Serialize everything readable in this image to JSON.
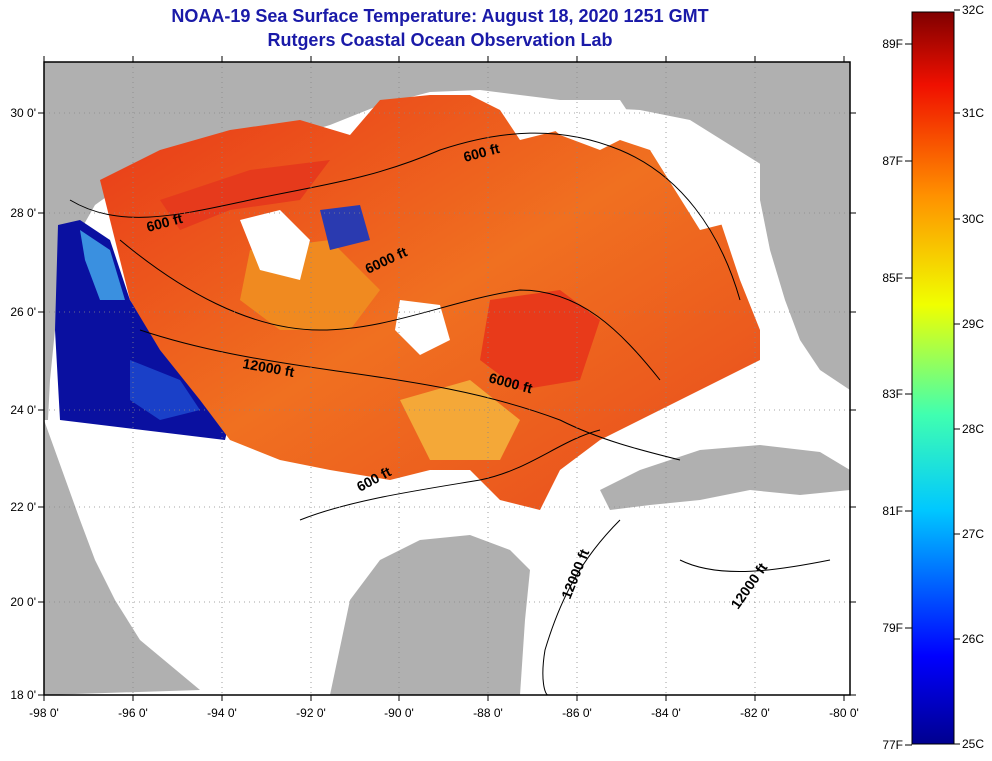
{
  "title": {
    "line1": "NOAA-19 Sea Surface Temperature:  August 18, 2020 1251 GMT",
    "line2": "Rutgers Coastal Ocean Observation Lab"
  },
  "map": {
    "lat_labels": [
      "30 0'",
      "28 0'",
      "26 0'",
      "24 0'",
      "22 0'",
      "20 0'",
      "18 0'"
    ],
    "lon_labels": [
      "-98 0'",
      "-96 0'",
      "-94 0'",
      "-92 0'",
      "-90 0'",
      "-88 0'",
      "-86 0'",
      "-84 0'",
      "-82 0'",
      "-80 0'"
    ],
    "contour_labels": [
      "600 ft",
      "600 ft",
      "600 ft",
      "6000 ft",
      "6000 ft",
      "12000 ft",
      "12000 ft",
      "12000 ft"
    ]
  },
  "colorbar": {
    "fahrenheit": [
      "89F",
      "87F",
      "85F",
      "83F",
      "81F",
      "79F",
      "77F"
    ],
    "celsius": [
      "32C",
      "31C",
      "30C",
      "29C",
      "28C",
      "27C",
      "26C",
      "25C"
    ]
  },
  "colors": {
    "title": "#1a1aa8",
    "land": "#b0b0b0",
    "no_data": "#ffffff",
    "warm": "#e8401a",
    "cold": "#0a10a0"
  }
}
